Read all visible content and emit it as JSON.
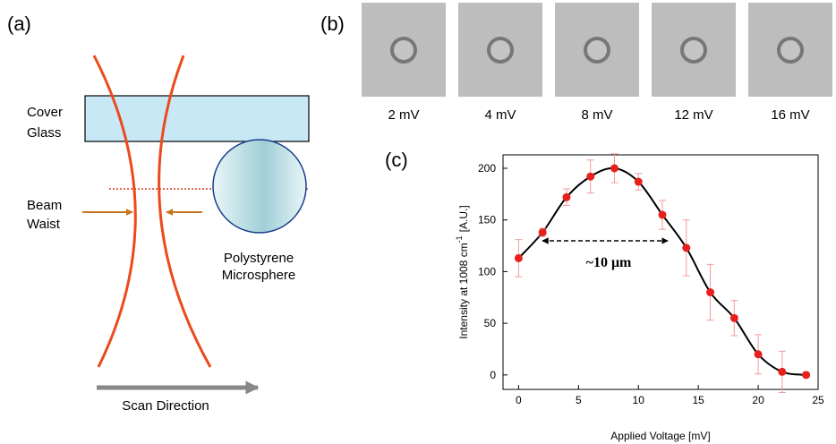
{
  "panel_a": {
    "label": "(a)",
    "cover_glass": [
      "Cover",
      "Glass"
    ],
    "beam_waist": [
      "Beam",
      "Waist"
    ],
    "microsphere": [
      "Polystyrene",
      "Microsphere"
    ],
    "scan_direction": "Scan Direction"
  },
  "panel_b": {
    "label": "(b)",
    "images": [
      "2 mV",
      "4 mV",
      "8 mV",
      "12 mV",
      "16 mV"
    ]
  },
  "panel_c_label": "(c)",
  "chart_data": {
    "type": "scatter",
    "xlabel": "Applied Voltage [mV]",
    "ylabel": {
      "text": "Intensity at 1008 cm",
      "superscript": "-1",
      "unit": "[A.U.]"
    },
    "annotation": "~10 μm",
    "x": [
      0,
      2,
      4,
      6,
      8,
      10,
      12,
      14,
      16,
      18,
      20,
      22,
      24
    ],
    "series": [
      {
        "color": "#e8201c",
        "error_color": "#f29a9a",
        "line_color": "#000000",
        "values": [
          113,
          138,
          172,
          192,
          200,
          187,
          155,
          123,
          80,
          55,
          20,
          3,
          0
        ],
        "errors": [
          18,
          4,
          8,
          16,
          14,
          8,
          14,
          27,
          27,
          17,
          19,
          20,
          2
        ]
      }
    ],
    "xlim": [
      -1.3,
      25
    ],
    "ylim": [
      -14,
      213
    ],
    "xticks": [
      0,
      5,
      10,
      15,
      20,
      25
    ],
    "yticks": [
      0,
      50,
      100,
      150,
      200
    ]
  }
}
